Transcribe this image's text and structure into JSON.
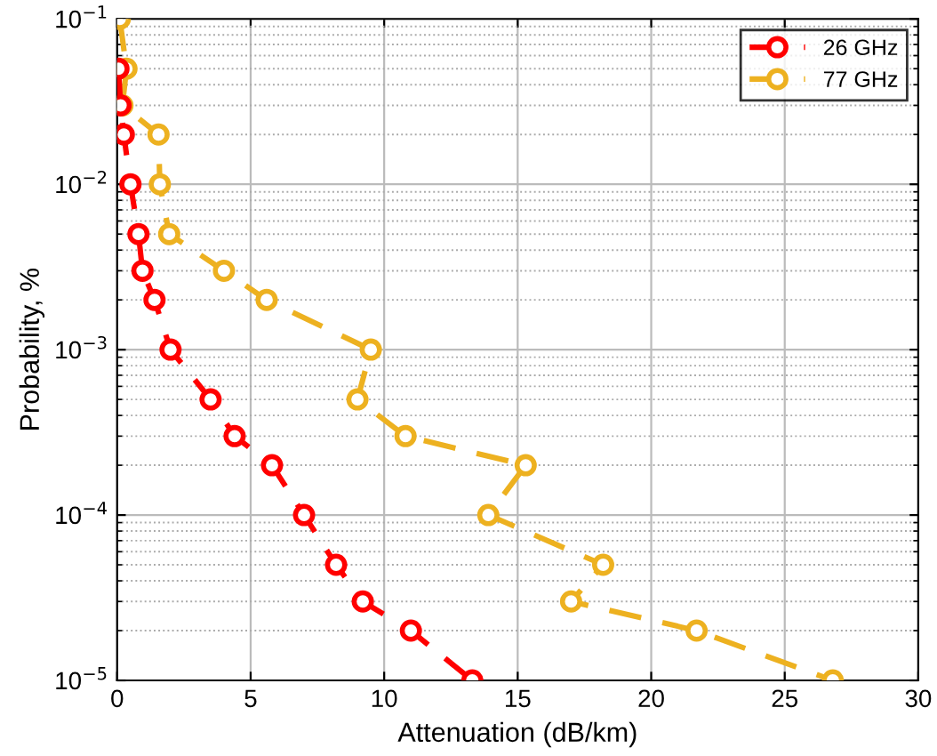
{
  "chart_data": {
    "type": "line",
    "xlabel": "Attenuation (dB/km)",
    "ylabel": "Probability, %",
    "log": "y",
    "grid": true,
    "legend": "top right",
    "marker": "circle",
    "line_style": "dashed",
    "xlim": [
      0,
      30
    ],
    "xticks": [
      0,
      5,
      10,
      15,
      20,
      25,
      30
    ],
    "ylim": [
      1e-05,
      0.1
    ],
    "yticks": [
      {
        "value": 1e-05,
        "label": "10$^{−5}$"
      },
      {
        "value": 0.0001,
        "label": "10$^{−4}$"
      },
      {
        "value": 0.001,
        "label": "10$^{−3}$"
      },
      {
        "value": 0.01,
        "label": "10$^{−2}$"
      },
      {
        "value": 0.1,
        "label": "10$^{−1}$"
      }
    ],
    "series": [
      {
        "name": "26 GHz",
        "color": "#ff0000",
        "x": [
          0.05,
          0.13,
          0.25,
          0.5,
          0.8,
          0.95,
          1.4,
          2.0,
          3.5,
          4.4,
          5.8,
          7.0,
          8.2,
          9.2,
          11.0,
          13.3
        ],
        "values": [
          0.05,
          0.03,
          0.02,
          0.01,
          0.005,
          0.003,
          0.002,
          0.001,
          0.0005,
          0.0003,
          0.0002,
          0.0001,
          5e-05,
          3e-05,
          2e-05,
          1e-05
        ]
      },
      {
        "name": "77 GHz",
        "color": "#edb120",
        "x": [
          0.1,
          0.35,
          0.2,
          1.55,
          1.6,
          1.95,
          4.0,
          5.6,
          9.5,
          9.0,
          10.8,
          15.3,
          13.9,
          18.2,
          17.0,
          21.7,
          26.8
        ],
        "values": [
          0.1,
          0.05,
          0.03,
          0.02,
          0.01,
          0.005,
          0.003,
          0.002,
          0.001,
          0.0005,
          0.0003,
          0.0002,
          0.0001,
          5e-05,
          3e-05,
          2e-05,
          1e-05
        ]
      }
    ]
  }
}
